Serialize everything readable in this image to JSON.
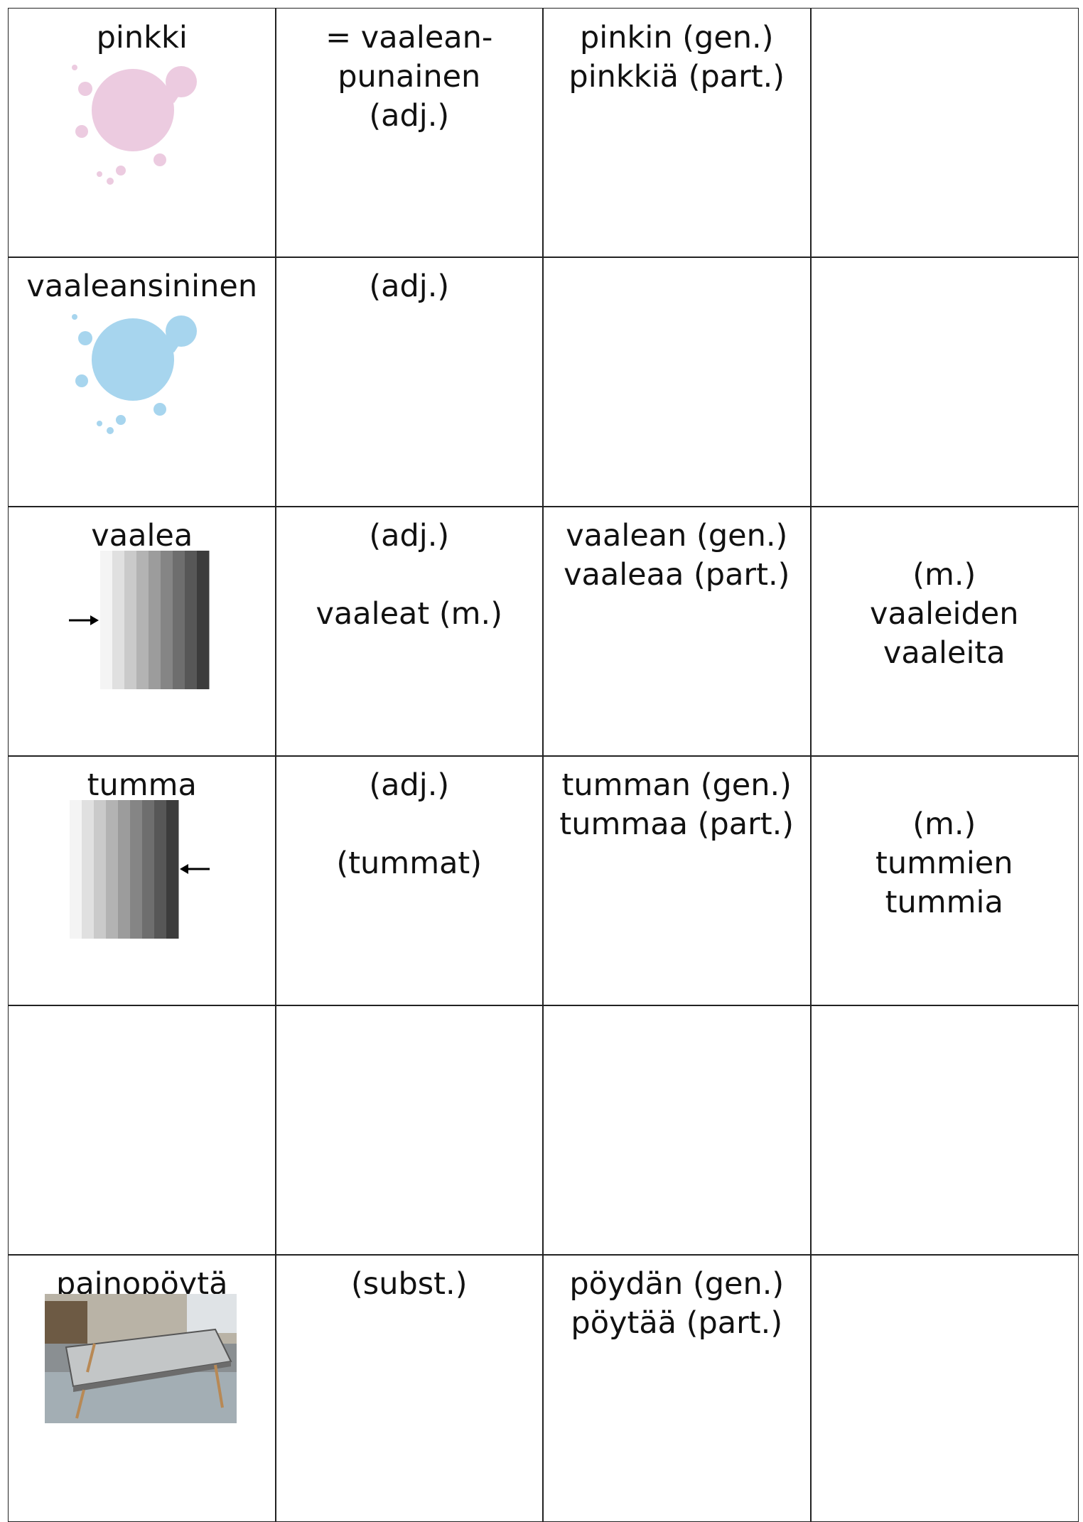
{
  "table": {
    "rows": [
      [
        [
          "pinkki"
        ],
        [
          "= vaalean-",
          "punainen",
          "(adj.)"
        ],
        [
          "pinkin (gen.)",
          "pinkkiä (part.)"
        ],
        []
      ],
      [
        [
          "vaaleansininen"
        ],
        [
          "(adj.)"
        ],
        [],
        []
      ],
      [
        [
          "vaalea"
        ],
        [
          "(adj.)",
          "vaaleat (m.)"
        ],
        [
          "vaalean (gen.)",
          "vaaleaa (part.)"
        ],
        [
          "(m.)",
          "vaaleiden",
          "vaaleita"
        ]
      ],
      [
        [
          "tumma"
        ],
        [
          "(adj.)",
          "(tummat)"
        ],
        [
          "tumman (gen.)",
          "tummaa (part.)"
        ],
        [
          "(m.)",
          "tummien",
          "tummia"
        ]
      ],
      [
        [],
        [],
        [],
        []
      ],
      [
        [
          "painopöytä"
        ],
        [
          "(subst.)"
        ],
        [
          "pöydän (gen.)",
          "pöytää (part.)"
        ],
        []
      ]
    ]
  }
}
